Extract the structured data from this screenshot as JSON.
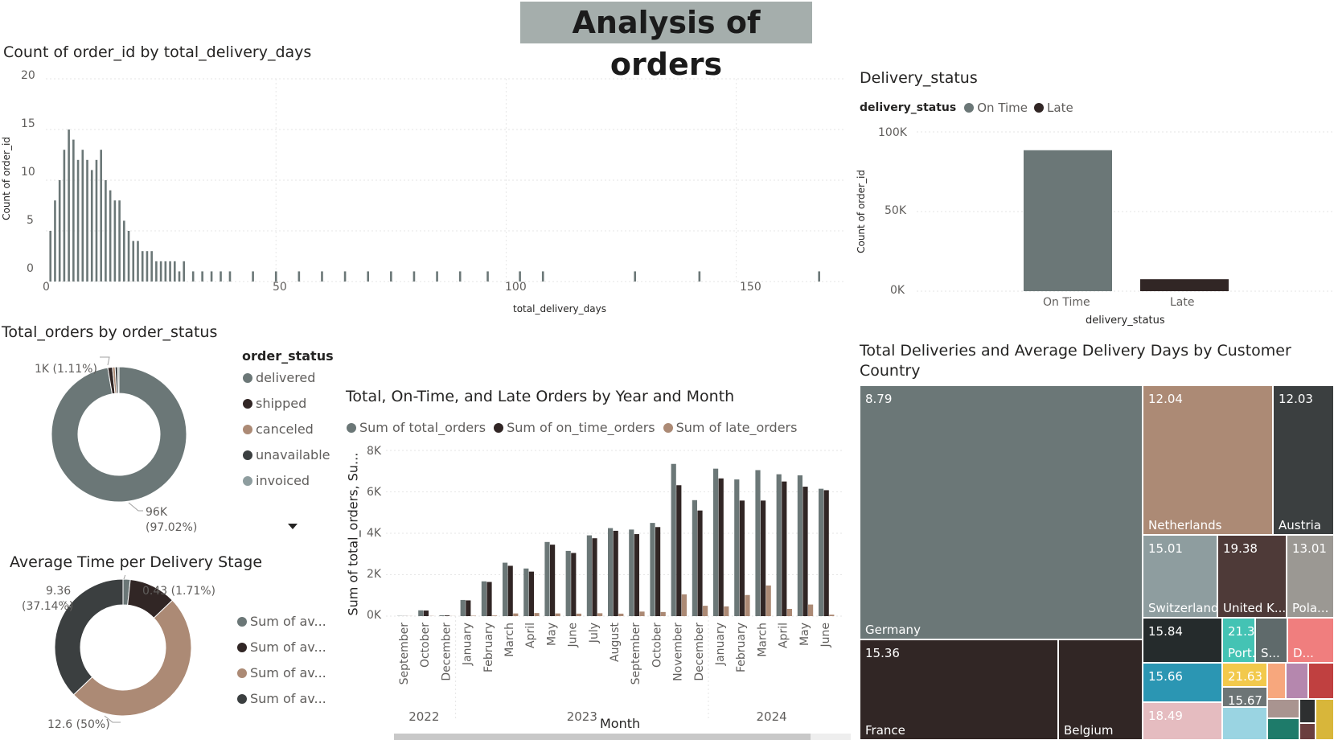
{
  "page_title": "Analysis of orders",
  "colors": {
    "gray": "#6b7777",
    "dark": "#312625",
    "tan": "#ac8a75",
    "charcoal": "#3b3f40",
    "light": "#8e9d9f"
  },
  "visuals": {
    "histogram": {
      "title": "Count of order_id by total_delivery_days",
      "xlabel": "total_delivery_days",
      "ylabel": "Count of order_id",
      "yticks": [
        "20",
        "15",
        "10",
        "5",
        "0"
      ],
      "xticks": [
        "0",
        "50",
        "100",
        "150"
      ]
    },
    "status_bar": {
      "title": "Delivery_status",
      "legend_title": "delivery_status",
      "legend": [
        "On Time",
        "Late"
      ],
      "yticks": [
        "100K",
        "50K",
        "0K"
      ],
      "categories": [
        "On Time",
        "Late"
      ],
      "xlabel": "delivery_status",
      "ylabel": "Count of order_id"
    },
    "order_status_donut": {
      "title": "Total_orders by order_status",
      "legend_title": "order_status",
      "legend": [
        "delivered",
        "shipped",
        "canceled",
        "unavailable",
        "invoiced"
      ],
      "label_small": "1K (1.11%)",
      "label_big_1": "96K",
      "label_big_2": "(97.02%)"
    },
    "stage_donut": {
      "title": "Average Time per Delivery Stage",
      "legend": [
        "Sum of av...",
        "Sum of av...",
        "Sum of av...",
        "Sum of av..."
      ],
      "label_a_1": "9.36",
      "label_a_2": "(37.14%)",
      "label_b": "0.43 (1.71%)",
      "label_c": "12.6 (50%)"
    },
    "monthly_bars": {
      "title": "Total, On-Time, and Late Orders by Year and Month",
      "legend": [
        "Sum of total_orders",
        "Sum of on_time_orders",
        "Sum of late_orders"
      ],
      "yticks": [
        "8K",
        "6K",
        "4K",
        "2K",
        "0K"
      ],
      "ylabel": "Sum of total_orders, Su...",
      "xlabel": "Month",
      "years": [
        "2022",
        "2023",
        "2024"
      ]
    },
    "treemap": {
      "title_line1": "Total Deliveries and Average Delivery Days by Customer",
      "title_line2": "Country"
    }
  },
  "chart_data": [
    {
      "type": "bar",
      "title": "Count of order_id by total_delivery_days",
      "xlabel": "total_delivery_days",
      "ylabel": "Count of order_id",
      "ylim": [
        0,
        20
      ],
      "xlim": [
        0,
        170
      ],
      "x": [
        1,
        2,
        3,
        4,
        5,
        6,
        7,
        8,
        9,
        10,
        11,
        12,
        13,
        14,
        15,
        16,
        17,
        18,
        19,
        20,
        21,
        22,
        23,
        24,
        25,
        26,
        27,
        28,
        29,
        30,
        32,
        34,
        36,
        38,
        40,
        45,
        50,
        55,
        60,
        65,
        70,
        75,
        80,
        85,
        90,
        96,
        103,
        108,
        128,
        142,
        168
      ],
      "values": [
        5,
        8,
        10,
        13,
        15,
        14,
        12,
        13,
        12,
        11,
        12,
        13,
        10,
        9,
        8,
        8,
        6,
        5,
        4,
        4,
        3,
        3,
        3,
        2,
        2,
        2,
        2,
        2,
        1,
        2,
        1,
        1,
        1,
        1,
        1,
        1,
        1,
        1,
        1,
        1,
        1,
        1,
        1,
        1,
        1,
        1,
        1,
        1,
        1,
        1,
        1
      ]
    },
    {
      "type": "bar",
      "title": "Delivery_status",
      "categories": [
        "On Time",
        "Late"
      ],
      "values": [
        88500,
        7500
      ],
      "xlabel": "delivery_status",
      "ylabel": "Count of order_id",
      "ylim": [
        0,
        100000
      ]
    },
    {
      "type": "pie",
      "title": "Total_orders by order_status",
      "categories": [
        "delivered",
        "shipped",
        "canceled",
        "unavailable",
        "invoiced"
      ],
      "values": [
        97.02,
        1.11,
        0.63,
        0.61,
        0.31
      ]
    },
    {
      "type": "pie",
      "title": "Average Time per Delivery Stage",
      "categories": [
        "Sum of av...",
        "Sum of av...",
        "Sum of av...",
        "Sum of av..."
      ],
      "values": [
        0.43,
        2.81,
        12.6,
        9.36
      ]
    },
    {
      "type": "bar",
      "title": "Total, On-Time, and Late Orders by Year and Month",
      "categories": [
        "September",
        "October",
        "December",
        "January",
        "February",
        "March",
        "April",
        "May",
        "June",
        "July",
        "August",
        "September",
        "October",
        "November",
        "December",
        "January",
        "February",
        "March",
        "April",
        "May",
        "June"
      ],
      "years": [
        "2022",
        "2023",
        "2024"
      ],
      "ylim": [
        0,
        8000
      ],
      "xlabel": "Month",
      "ylabel": "Sum of total_orders, Su...",
      "series": [
        {
          "name": "Sum of total_orders",
          "values": [
            10,
            280,
            40,
            780,
            1680,
            2580,
            2300,
            3580,
            3150,
            3900,
            4250,
            4180,
            4500,
            7350,
            5600,
            7120,
            6600,
            7050,
            6850,
            6800,
            6150
          ]
        },
        {
          "name": "Sum of on_time_orders",
          "values": [
            5,
            270,
            35,
            760,
            1650,
            2430,
            2150,
            3450,
            3050,
            3760,
            4120,
            3960,
            4300,
            6320,
            5100,
            6650,
            5580,
            5580,
            6500,
            6250,
            6080
          ]
        },
        {
          "name": "Sum of late_orders",
          "values": [
            5,
            10,
            5,
            20,
            30,
            130,
            150,
            130,
            120,
            140,
            120,
            220,
            200,
            1050,
            500,
            470,
            1020,
            1480,
            350,
            560,
            70
          ]
        }
      ]
    },
    {
      "type": "treemap",
      "title": "Total Deliveries and Average Delivery Days by Customer Country",
      "categories": [
        "Germany",
        "France",
        "Belgium",
        "Netherlands",
        "Austria",
        "Switzerland",
        "United K...",
        "Pola...",
        "",
        "Port...",
        "S...",
        "D...",
        "",
        "",
        "",
        ""
      ],
      "values": [
        8.79,
        15.36,
        null,
        12.04,
        12.03,
        15.01,
        19.38,
        13.01,
        15.84,
        21.33,
        null,
        null,
        15.66,
        21.63,
        15.67,
        18.49
      ]
    }
  ]
}
